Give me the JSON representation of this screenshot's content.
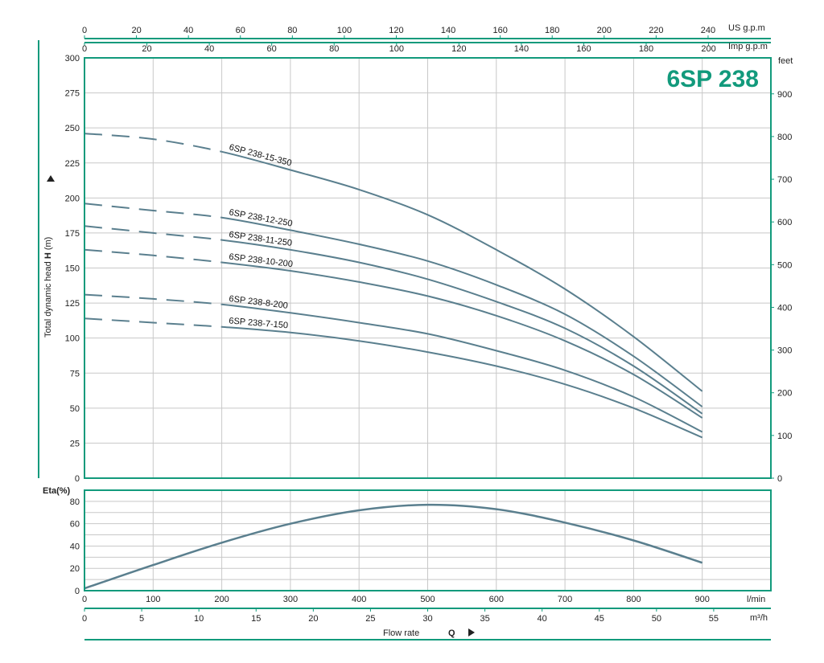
{
  "colors": {
    "frame": "#129a7c",
    "grid": "#c8c8c8",
    "curve": "#5a7f8e",
    "badge": "#129a7c"
  },
  "chart_data": [
    {
      "type": "line",
      "title": "6SP 238",
      "ylabel": "Total dynamic head H (m)",
      "ylabel_prefix": "Total dynamic head ",
      "ylabel_symbol": "H",
      "ylabel_suffix": " (m)",
      "y2label": "feet",
      "xlim": [
        0,
        1000
      ],
      "ylim": [
        0,
        300
      ],
      "y2lim": [
        0,
        984.25
      ],
      "yticks": [
        "0",
        "25",
        "50",
        "75",
        "100",
        "125",
        "150",
        "175",
        "200",
        "225",
        "250",
        "275",
        "300"
      ],
      "y2ticks": [
        "0",
        "100",
        "200",
        "300",
        "400",
        "500",
        "600",
        "700",
        "800",
        "900"
      ],
      "top_axes": [
        {
          "unit": "US g.p.m",
          "per_lmin": 0.264172,
          "ticks": [
            "0",
            "20",
            "40",
            "60",
            "80",
            "100",
            "120",
            "140",
            "160",
            "180",
            "200",
            "220",
            "240"
          ]
        },
        {
          "unit": "Imp g.p.m",
          "per_lmin": 0.219969,
          "ticks": [
            "0",
            "20",
            "40",
            "60",
            "80",
            "100",
            "120",
            "140",
            "160",
            "180",
            "200"
          ]
        }
      ],
      "series": [
        {
          "name": "6SP 238-15-350",
          "dashed_until": 200,
          "x": [
            0,
            100,
            200,
            300,
            400,
            500,
            600,
            700,
            800,
            900
          ],
          "y": [
            246,
            242,
            233,
            220,
            206,
            188,
            163,
            135,
            101,
            62
          ]
        },
        {
          "name": "6SP 238-12-250",
          "dashed_until": 200,
          "x": [
            0,
            100,
            200,
            300,
            400,
            500,
            600,
            700,
            800,
            900
          ],
          "y": [
            196,
            191,
            186,
            177,
            167,
            155,
            138,
            117,
            87,
            51
          ]
        },
        {
          "name": "6SP 238-11-250",
          "dashed_until": 200,
          "x": [
            0,
            100,
            200,
            300,
            400,
            500,
            600,
            700,
            800,
            900
          ],
          "y": [
            180,
            175,
            170,
            163,
            154,
            142,
            126,
            107,
            80,
            46
          ]
        },
        {
          "name": "6SP 238-10-200",
          "dashed_until": 200,
          "x": [
            0,
            100,
            200,
            300,
            400,
            500,
            600,
            700,
            800,
            900
          ],
          "y": [
            163,
            159,
            154,
            148,
            140,
            130,
            116,
            98,
            74,
            43
          ]
        },
        {
          "name": "6SP 238-8-200",
          "dashed_until": 200,
          "x": [
            0,
            100,
            200,
            300,
            400,
            500,
            600,
            700,
            800,
            900
          ],
          "y": [
            131,
            128,
            124,
            118,
            111,
            103,
            91,
            77,
            58,
            33
          ]
        },
        {
          "name": "6SP 238-7-150",
          "dashed_until": 200,
          "x": [
            0,
            100,
            200,
            300,
            400,
            500,
            600,
            700,
            800,
            900
          ],
          "y": [
            114,
            111,
            108,
            104,
            98,
            90,
            80,
            67,
            50,
            29
          ]
        }
      ]
    },
    {
      "type": "line",
      "ylabel": "Eta(%)",
      "xlim": [
        0,
        1000
      ],
      "ylim": [
        0,
        90
      ],
      "yticks": [
        "0",
        "20",
        "40",
        "60",
        "80"
      ],
      "xlabel": "Flow rate Q",
      "xlabel_text": "Flow rate",
      "xlabel_symbol": "Q",
      "bottom_axes": [
        {
          "unit": "l/min",
          "per_lmin": 1,
          "ticks": [
            "0",
            "100",
            "200",
            "300",
            "400",
            "500",
            "600",
            "700",
            "800",
            "900"
          ]
        },
        {
          "unit": "m³/h",
          "per_lmin": 0.06,
          "ticks": [
            "0",
            "5",
            "10",
            "15",
            "20",
            "25",
            "30",
            "35",
            "40",
            "45",
            "50",
            "55"
          ]
        }
      ],
      "series": [
        {
          "name": "Eta",
          "x": [
            0,
            100,
            200,
            300,
            400,
            500,
            600,
            700,
            800,
            900
          ],
          "y": [
            2,
            23,
            43,
            60,
            72,
            77,
            73,
            61,
            45,
            25
          ]
        }
      ]
    }
  ]
}
